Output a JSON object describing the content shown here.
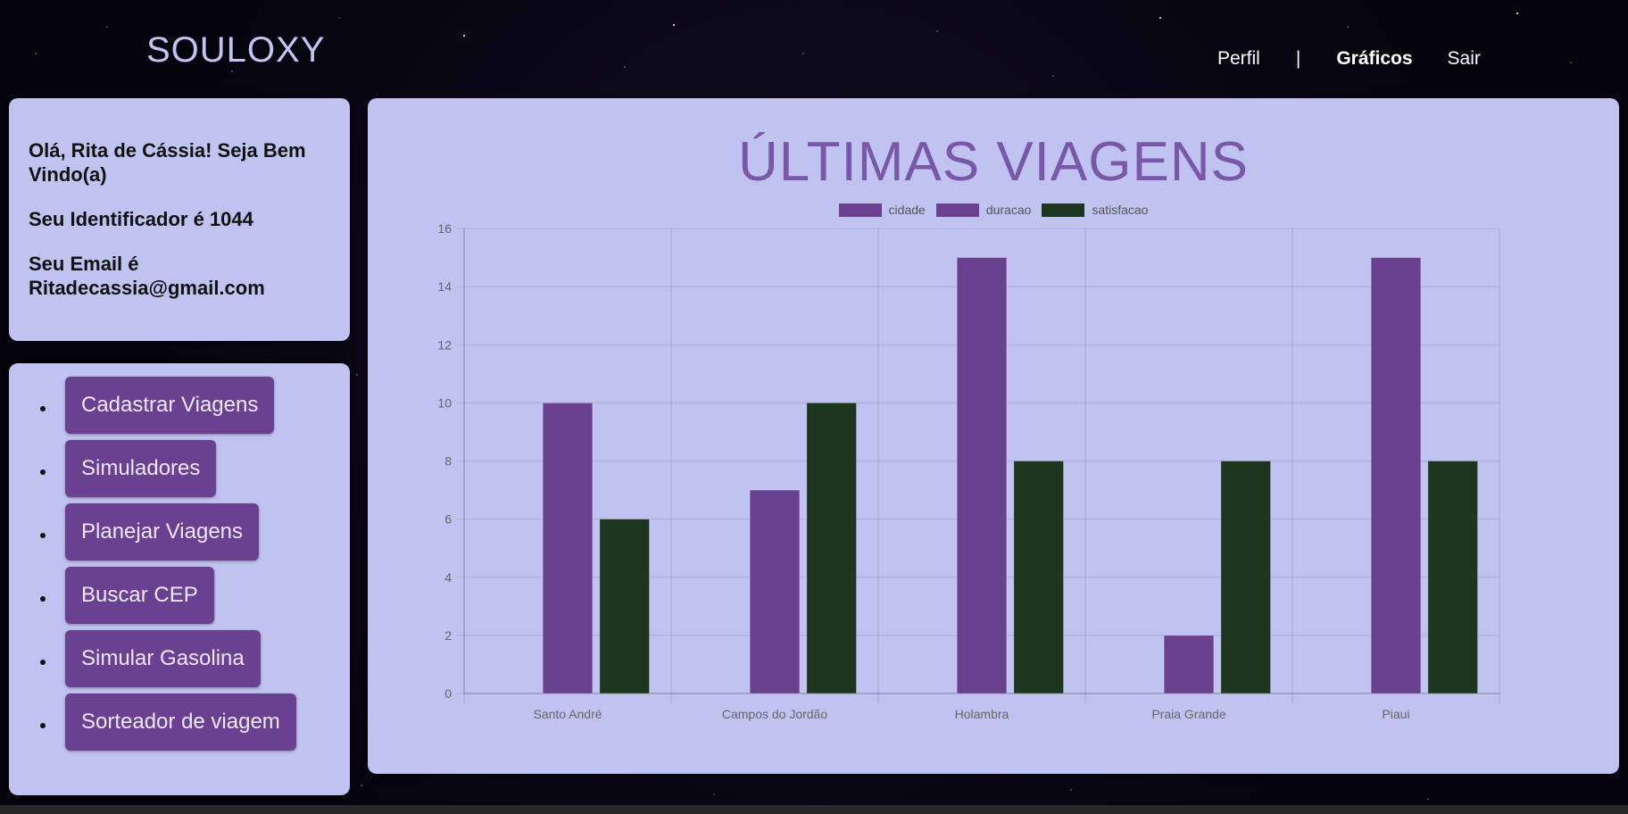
{
  "header": {
    "brand": "SOULOXY",
    "nav": [
      {
        "label": "Perfil"
      },
      {
        "label": "|"
      },
      {
        "label": "Gráficos"
      },
      {
        "label": "Sair"
      }
    ]
  },
  "user_info": {
    "greeting": "Olá, Rita de Cássia! Seja Bem Vindo(a)",
    "identifier": "Seu Identificador é 1044",
    "email": "Seu Email é Ritadecassia@gmail.com"
  },
  "menu": {
    "items": [
      {
        "label": "Cadastrar Viagens"
      },
      {
        "label": "Simuladores"
      },
      {
        "label": "Planejar Viagens"
      },
      {
        "label": "Buscar CEP"
      },
      {
        "label": "Simular Gasolina"
      },
      {
        "label": "Sorteador de viagem"
      }
    ]
  },
  "chart_data": {
    "type": "bar",
    "title": "ÚLTIMAS VIAGENS",
    "categories": [
      "Santo André",
      "Campos do Jordão",
      "Holambra",
      "Praia Grande",
      "Piaui"
    ],
    "series": [
      {
        "name": "cidade",
        "values": [
          0,
          0,
          0,
          0,
          0
        ],
        "color": "#6a4190"
      },
      {
        "name": "duracao",
        "values": [
          10,
          7,
          15,
          2,
          15
        ],
        "color": "#6a4190"
      },
      {
        "name": "satisfacao",
        "values": [
          6,
          10,
          8,
          8,
          8
        ],
        "color": "#1c3620"
      }
    ],
    "y_ticks": [
      0,
      2,
      4,
      6,
      8,
      10,
      12,
      14,
      16
    ],
    "ylim": [
      0,
      16
    ],
    "grid": true,
    "legend_position": "top-center"
  },
  "colors": {
    "panel": "#c0c3f0",
    "accent": "#6a4190",
    "title": "#7a58a8"
  }
}
